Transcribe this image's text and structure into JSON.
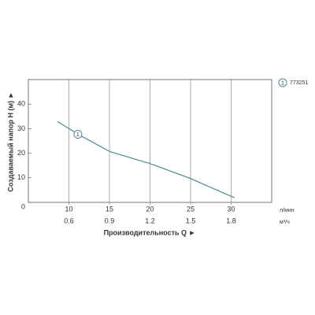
{
  "chart_data": {
    "type": "line",
    "x_label": "Производительность Q ►",
    "y_label": "Создаваемый напор H (м) ►",
    "x_unit": "л/мин",
    "x2_unit": "м³/ч",
    "x": [
      8.6,
      11.3,
      15.1,
      20,
      25,
      30.4
    ],
    "series": [
      {
        "name": "773251",
        "label": "1",
        "color": "#4d8590",
        "values": [
          32.9,
          27.4,
          20.6,
          15.8,
          9.7,
          1.9
        ]
      }
    ],
    "xlim": [
      5,
      35
    ],
    "xticks": [
      10,
      15,
      20,
      25,
      30
    ],
    "x2lim": [
      0.3,
      2.1
    ],
    "x2ticks": [
      0.6,
      0.9,
      1.2,
      1.5,
      1.8
    ],
    "ylim": [
      0,
      50
    ],
    "yticks": [
      0,
      10,
      20,
      30,
      40
    ],
    "grid": true
  }
}
